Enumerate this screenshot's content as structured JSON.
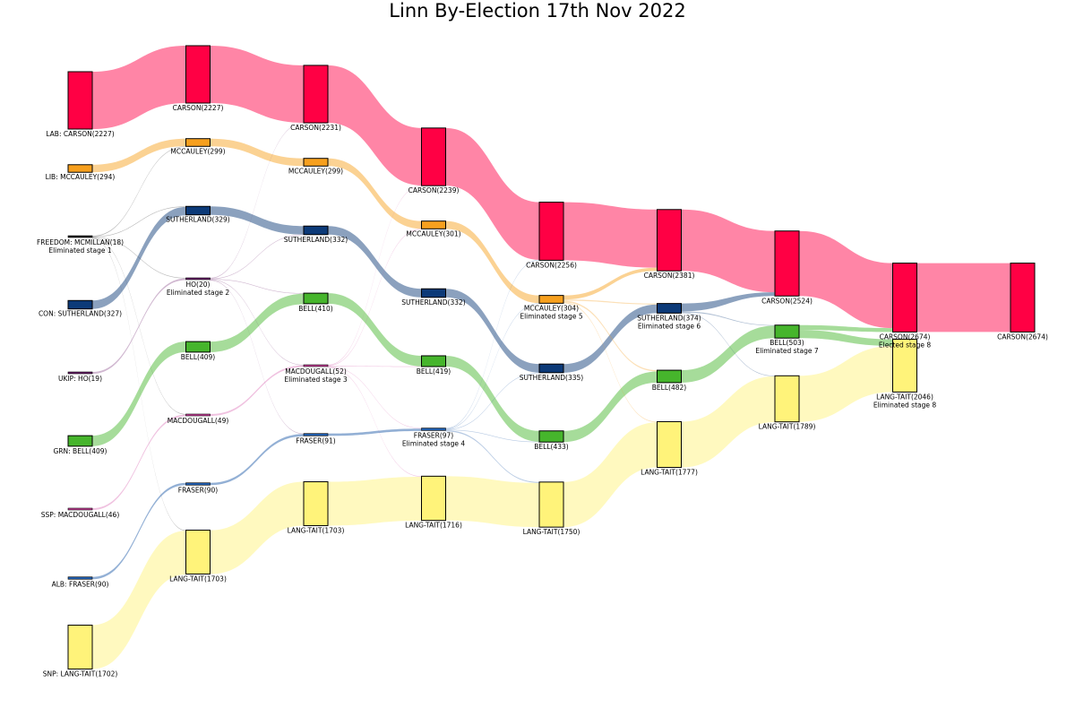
{
  "chart_data": {
    "type": "sankey",
    "title": "Linn By-Election 17th Nov 2022",
    "party_colors": {
      "LAB": "#ff0044",
      "LIB": "#f7a01e",
      "FREEDOM": "#1a1a1a",
      "CON": "#0c3a78",
      "UKIP": "#6c1f6c",
      "GRN": "#46b52c",
      "SSP": "#d1429f",
      "ALB": "#1e5aa8",
      "SNP": "#fff37a"
    },
    "stages": [
      {
        "index": 0,
        "nodes": [
          {
            "id": "s0-carson",
            "party": "LAB",
            "value": 2227,
            "label": "LAB: CARSON(2227)"
          },
          {
            "id": "s0-mccauley",
            "party": "LIB",
            "value": 294,
            "label": "LIB: MCCAULEY(294)"
          },
          {
            "id": "s0-mcmillan",
            "party": "FREEDOM",
            "value": 18,
            "label": "FREEDOM: MCMILLAN(18)",
            "note": "Eliminated stage 1"
          },
          {
            "id": "s0-sutherland",
            "party": "CON",
            "value": 327,
            "label": "CON: SUTHERLAND(327)"
          },
          {
            "id": "s0-ho",
            "party": "UKIP",
            "value": 19,
            "label": "UKIP: HO(19)"
          },
          {
            "id": "s0-bell",
            "party": "GRN",
            "value": 409,
            "label": "GRN: BELL(409)"
          },
          {
            "id": "s0-macdougall",
            "party": "SSP",
            "value": 46,
            "label": "SSP: MACDOUGALL(46)"
          },
          {
            "id": "s0-fraser",
            "party": "ALB",
            "value": 90,
            "label": "ALB: FRASER(90)"
          },
          {
            "id": "s0-langtait",
            "party": "SNP",
            "value": 1702,
            "label": "SNP: LANG-TAIT(1702)"
          }
        ]
      },
      {
        "index": 1,
        "nodes": [
          {
            "id": "s1-carson",
            "party": "LAB",
            "value": 2227,
            "label": "CARSON(2227)"
          },
          {
            "id": "s1-mccauley",
            "party": "LIB",
            "value": 299,
            "label": "MCCAULEY(299)"
          },
          {
            "id": "s1-sutherland",
            "party": "CON",
            "value": 329,
            "label": "SUTHERLAND(329)"
          },
          {
            "id": "s1-ho",
            "party": "UKIP",
            "value": 20,
            "label": "HO(20)",
            "note": "Eliminated stage 2"
          },
          {
            "id": "s1-bell",
            "party": "GRN",
            "value": 409,
            "label": "BELL(409)"
          },
          {
            "id": "s1-macdougall",
            "party": "SSP",
            "value": 49,
            "label": "MACDOUGALL(49)"
          },
          {
            "id": "s1-fraser",
            "party": "ALB",
            "value": 90,
            "label": "FRASER(90)"
          },
          {
            "id": "s1-langtait",
            "party": "SNP",
            "value": 1703,
            "label": "LANG-TAIT(1703)"
          }
        ]
      },
      {
        "index": 2,
        "nodes": [
          {
            "id": "s2-carson",
            "party": "LAB",
            "value": 2231,
            "label": "CARSON(2231)"
          },
          {
            "id": "s2-mccauley",
            "party": "LIB",
            "value": 299,
            "label": "MCCAULEY(299)"
          },
          {
            "id": "s2-sutherland",
            "party": "CON",
            "value": 332,
            "label": "SUTHERLAND(332)"
          },
          {
            "id": "s2-bell",
            "party": "GRN",
            "value": 410,
            "label": "BELL(410)"
          },
          {
            "id": "s2-macdougall",
            "party": "SSP",
            "value": 52,
            "label": "MACDOUGALL(52)",
            "note": "Eliminated stage 3"
          },
          {
            "id": "s2-fraser",
            "party": "ALB",
            "value": 91,
            "label": "FRASER(91)"
          },
          {
            "id": "s2-langtait",
            "party": "SNP",
            "value": 1703,
            "label": "LANG-TAIT(1703)"
          }
        ]
      },
      {
        "index": 3,
        "nodes": [
          {
            "id": "s3-carson",
            "party": "LAB",
            "value": 2239,
            "label": "CARSON(2239)"
          },
          {
            "id": "s3-mccauley",
            "party": "LIB",
            "value": 301,
            "label": "MCCAULEY(301)"
          },
          {
            "id": "s3-sutherland",
            "party": "CON",
            "value": 332,
            "label": "SUTHERLAND(332)"
          },
          {
            "id": "s3-bell",
            "party": "GRN",
            "value": 419,
            "label": "BELL(419)"
          },
          {
            "id": "s3-fraser",
            "party": "ALB",
            "value": 97,
            "label": "FRASER(97)",
            "note": "Eliminated stage 4"
          },
          {
            "id": "s3-langtait",
            "party": "SNP",
            "value": 1716,
            "label": "LANG-TAIT(1716)"
          }
        ]
      },
      {
        "index": 4,
        "nodes": [
          {
            "id": "s4-carson",
            "party": "LAB",
            "value": 2256,
            "label": "CARSON(2256)"
          },
          {
            "id": "s4-mccauley",
            "party": "LIB",
            "value": 304,
            "label": "MCCAULEY(304)",
            "note": "Eliminated stage 5"
          },
          {
            "id": "s4-sutherland",
            "party": "CON",
            "value": 335,
            "label": "SUTHERLAND(335)"
          },
          {
            "id": "s4-bell",
            "party": "GRN",
            "value": 433,
            "label": "BELL(433)"
          },
          {
            "id": "s4-langtait",
            "party": "SNP",
            "value": 1750,
            "label": "LANG-TAIT(1750)"
          }
        ]
      },
      {
        "index": 5,
        "nodes": [
          {
            "id": "s5-carson",
            "party": "LAB",
            "value": 2381,
            "label": "CARSON(2381)"
          },
          {
            "id": "s5-sutherland",
            "party": "CON",
            "value": 374,
            "label": "SUTHERLAND(374)",
            "note": "Eliminated stage 6"
          },
          {
            "id": "s5-bell",
            "party": "GRN",
            "value": 482,
            "label": "BELL(482)"
          },
          {
            "id": "s5-langtait",
            "party": "SNP",
            "value": 1777,
            "label": "LANG-TAIT(1777)"
          }
        ]
      },
      {
        "index": 6,
        "nodes": [
          {
            "id": "s6-carson",
            "party": "LAB",
            "value": 2524,
            "label": "CARSON(2524)"
          },
          {
            "id": "s6-bell",
            "party": "GRN",
            "value": 503,
            "label": "BELL(503)",
            "note": "Eliminated stage 7"
          },
          {
            "id": "s6-langtait",
            "party": "SNP",
            "value": 1789,
            "label": "LANG-TAIT(1789)"
          }
        ]
      },
      {
        "index": 7,
        "nodes": [
          {
            "id": "s7-carson",
            "party": "LAB",
            "value": 2674,
            "label": "CARSON(2674)",
            "note": "Elected stage 8"
          },
          {
            "id": "s7-langtait",
            "party": "SNP",
            "value": 2046,
            "label": "LANG-TAIT(2046)",
            "note": "Eliminated stage 8"
          }
        ]
      },
      {
        "index": 8,
        "nodes": [
          {
            "id": "s8-carson",
            "party": "LAB",
            "value": 2674,
            "label": "CARSON(2674)"
          }
        ]
      }
    ],
    "flows": [
      {
        "from": "s0-carson",
        "to": "s1-carson",
        "value": 2227
      },
      {
        "from": "s0-mccauley",
        "to": "s1-mccauley",
        "value": 294
      },
      {
        "from": "s0-sutherland",
        "to": "s1-sutherland",
        "value": 327
      },
      {
        "from": "s0-ho",
        "to": "s1-ho",
        "value": 19
      },
      {
        "from": "s0-bell",
        "to": "s1-bell",
        "value": 409
      },
      {
        "from": "s0-macdougall",
        "to": "s1-macdougall",
        "value": 46
      },
      {
        "from": "s0-fraser",
        "to": "s1-fraser",
        "value": 90
      },
      {
        "from": "s0-langtait",
        "to": "s1-langtait",
        "value": 1702
      },
      {
        "from": "s0-mcmillan",
        "to": "s1-mccauley",
        "value": 5
      },
      {
        "from": "s0-mcmillan",
        "to": "s1-sutherland",
        "value": 2
      },
      {
        "from": "s0-mcmillan",
        "to": "s1-ho",
        "value": 1
      },
      {
        "from": "s0-mcmillan",
        "to": "s1-macdougall",
        "value": 3
      },
      {
        "from": "s0-mcmillan",
        "to": "s1-langtait",
        "value": 1
      },
      {
        "from": "s1-carson",
        "to": "s2-carson",
        "value": 2227
      },
      {
        "from": "s1-mccauley",
        "to": "s2-mccauley",
        "value": 299
      },
      {
        "from": "s1-sutherland",
        "to": "s2-sutherland",
        "value": 329
      },
      {
        "from": "s1-bell",
        "to": "s2-bell",
        "value": 409
      },
      {
        "from": "s1-macdougall",
        "to": "s2-macdougall",
        "value": 49
      },
      {
        "from": "s1-fraser",
        "to": "s2-fraser",
        "value": 90
      },
      {
        "from": "s1-langtait",
        "to": "s2-langtait",
        "value": 1703
      },
      {
        "from": "s1-ho",
        "to": "s2-carson",
        "value": 4
      },
      {
        "from": "s1-ho",
        "to": "s2-sutherland",
        "value": 3
      },
      {
        "from": "s1-ho",
        "to": "s2-macdougall",
        "value": 3
      },
      {
        "from": "s1-ho",
        "to": "s2-bell",
        "value": 1
      },
      {
        "from": "s1-ho",
        "to": "s2-fraser",
        "value": 1
      },
      {
        "from": "s2-carson",
        "to": "s3-carson",
        "value": 2231
      },
      {
        "from": "s2-mccauley",
        "to": "s3-mccauley",
        "value": 299
      },
      {
        "from": "s2-sutherland",
        "to": "s3-sutherland",
        "value": 332
      },
      {
        "from": "s2-bell",
        "to": "s3-bell",
        "value": 410
      },
      {
        "from": "s2-fraser",
        "to": "s3-fraser",
        "value": 91
      },
      {
        "from": "s2-langtait",
        "to": "s3-langtait",
        "value": 1703
      },
      {
        "from": "s2-macdougall",
        "to": "s3-carson",
        "value": 8
      },
      {
        "from": "s2-macdougall",
        "to": "s3-mccauley",
        "value": 2
      },
      {
        "from": "s2-macdougall",
        "to": "s3-bell",
        "value": 9
      },
      {
        "from": "s2-macdougall",
        "to": "s3-fraser",
        "value": 6
      },
      {
        "from": "s2-macdougall",
        "to": "s3-langtait",
        "value": 13
      },
      {
        "from": "s3-carson",
        "to": "s4-carson",
        "value": 2239
      },
      {
        "from": "s3-mccauley",
        "to": "s4-mccauley",
        "value": 301
      },
      {
        "from": "s3-sutherland",
        "to": "s4-sutherland",
        "value": 332
      },
      {
        "from": "s3-bell",
        "to": "s4-bell",
        "value": 419
      },
      {
        "from": "s3-langtait",
        "to": "s4-langtait",
        "value": 1716
      },
      {
        "from": "s3-fraser",
        "to": "s4-carson",
        "value": 17
      },
      {
        "from": "s3-fraser",
        "to": "s4-mccauley",
        "value": 3
      },
      {
        "from": "s3-fraser",
        "to": "s4-sutherland",
        "value": 3
      },
      {
        "from": "s3-fraser",
        "to": "s4-bell",
        "value": 14
      },
      {
        "from": "s3-fraser",
        "to": "s4-langtait",
        "value": 34
      },
      {
        "from": "s4-carson",
        "to": "s5-carson",
        "value": 2256
      },
      {
        "from": "s4-sutherland",
        "to": "s5-sutherland",
        "value": 335
      },
      {
        "from": "s4-bell",
        "to": "s5-bell",
        "value": 433
      },
      {
        "from": "s4-langtait",
        "to": "s5-langtait",
        "value": 1750
      },
      {
        "from": "s4-mccauley",
        "to": "s5-carson",
        "value": 125
      },
      {
        "from": "s4-mccauley",
        "to": "s5-sutherland",
        "value": 39
      },
      {
        "from": "s4-mccauley",
        "to": "s5-bell",
        "value": 49
      },
      {
        "from": "s4-mccauley",
        "to": "s5-langtait",
        "value": 27
      },
      {
        "from": "s5-carson",
        "to": "s6-carson",
        "value": 2381
      },
      {
        "from": "s5-bell",
        "to": "s6-bell",
        "value": 482
      },
      {
        "from": "s5-langtait",
        "to": "s6-langtait",
        "value": 1777
      },
      {
        "from": "s5-sutherland",
        "to": "s6-carson",
        "value": 143
      },
      {
        "from": "s5-sutherland",
        "to": "s6-bell",
        "value": 21
      },
      {
        "from": "s5-sutherland",
        "to": "s6-langtait",
        "value": 12
      },
      {
        "from": "s6-carson",
        "to": "s7-carson",
        "value": 2524
      },
      {
        "from": "s6-langtait",
        "to": "s7-langtait",
        "value": 1789
      },
      {
        "from": "s6-bell",
        "to": "s7-carson",
        "value": 150
      },
      {
        "from": "s6-bell",
        "to": "s7-langtait",
        "value": 257
      },
      {
        "from": "s7-carson",
        "to": "s8-carson",
        "value": 2674
      }
    ]
  }
}
